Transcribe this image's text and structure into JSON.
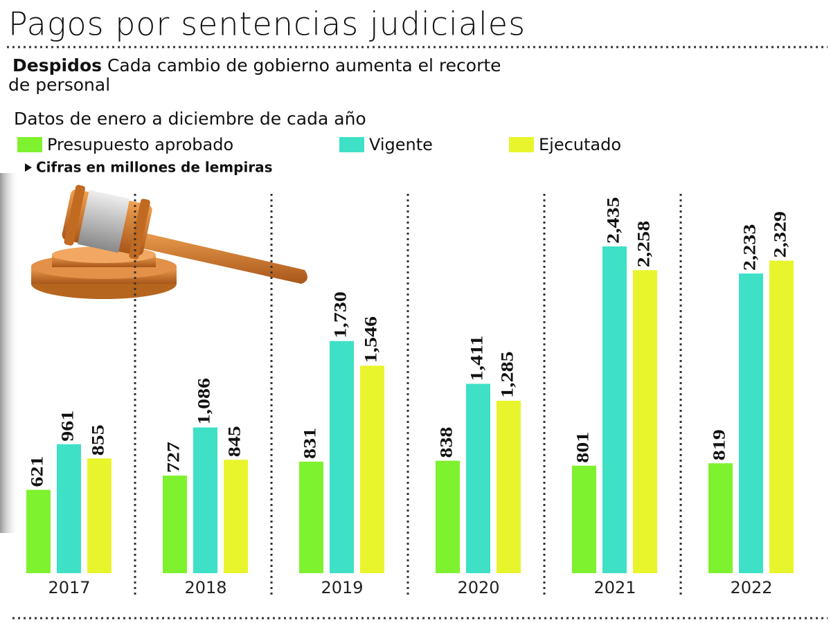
{
  "chart_data": {
    "type": "bar",
    "title": "Pagos por sentencias judiciales",
    "subtitle_bold": "Despidos",
    "subtitle": "Cada cambio de gobierno  aumenta el recorte",
    "subtitle_line2": "de personal",
    "note": "Datos de enero a diciembre de cada año",
    "units": "Cifras en millones de lempiras",
    "categories": [
      "2017",
      "2018",
      "2019",
      "2020",
      "2021",
      "2022"
    ],
    "series": [
      {
        "name": "Presupuesto aprobado",
        "color": "#7ef22e",
        "values": [
          621,
          727,
          831,
          838,
          801,
          819
        ]
      },
      {
        "name": "Vigente",
        "color": "#3ee0c6",
        "values": [
          961,
          1086,
          1730,
          1411,
          2435,
          2233
        ],
        "value_labels": [
          "961",
          "1,086",
          "1,730",
          "1,411",
          "2,435",
          "2,233"
        ]
      },
      {
        "name": "Ejecutado",
        "color": "#e8f52c",
        "values": [
          855,
          845,
          1546,
          1285,
          2258,
          2329
        ],
        "value_labels": [
          "855",
          "845",
          "1,546",
          "1,285",
          "2,258",
          "2,329"
        ]
      }
    ]
  }
}
